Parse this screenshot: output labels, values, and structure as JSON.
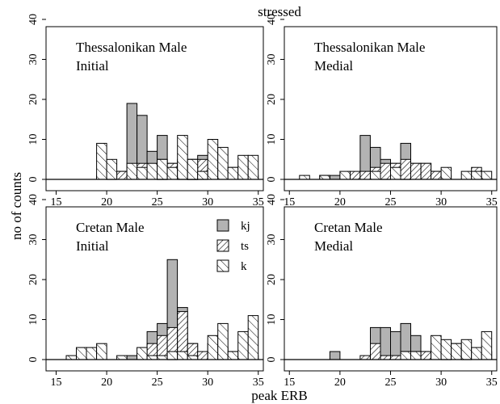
{
  "figure": {
    "title": "stressed",
    "xlabel": "peak ERB",
    "ylabel": "no of counts"
  },
  "legend": [
    {
      "label": "kj",
      "pattern": "solid"
    },
    {
      "label": "ts",
      "pattern": "hatch-forward"
    },
    {
      "label": "k",
      "pattern": "hatch-back"
    }
  ],
  "colors": {
    "kj_fill": "#b3b3b3",
    "outline": "#000000",
    "background": "#ffffff"
  },
  "chart_data": [
    {
      "type": "bar",
      "subtype": "histogram",
      "panel": "top-left",
      "label_lines": [
        "Thessalonikan Male",
        "Initial"
      ],
      "bin_width": 1,
      "xlim": [
        14,
        35.5
      ],
      "ylim": [
        0,
        42
      ],
      "xticks": [
        15,
        20,
        25,
        30,
        35
      ],
      "yticks": [
        0,
        10,
        20,
        30,
        40
      ],
      "series": [
        {
          "name": "kj",
          "bins": [
            {
              "x": 19.5,
              "count": 1
            },
            {
              "x": 20.5,
              "count": 2
            },
            {
              "x": 21.5,
              "count": 2
            },
            {
              "x": 22.5,
              "count": 19
            },
            {
              "x": 23.5,
              "count": 16
            },
            {
              "x": 24.5,
              "count": 7
            },
            {
              "x": 25.5,
              "count": 11
            },
            {
              "x": 26.5,
              "count": 4
            },
            {
              "x": 27.5,
              "count": 5
            },
            {
              "x": 28.5,
              "count": 5
            },
            {
              "x": 29.5,
              "count": 6
            },
            {
              "x": 30.5,
              "count": 3
            },
            {
              "x": 31.5,
              "count": 3
            },
            {
              "x": 32.5,
              "count": 3
            },
            {
              "x": 33.5,
              "count": 1
            }
          ]
        },
        {
          "name": "ts",
          "bins": [
            {
              "x": 20.5,
              "count": 2
            },
            {
              "x": 21.5,
              "count": 2
            },
            {
              "x": 22.5,
              "count": 2
            },
            {
              "x": 23.5,
              "count": 4
            },
            {
              "x": 24.5,
              "count": 3
            },
            {
              "x": 25.5,
              "count": 5
            },
            {
              "x": 26.5,
              "count": 4
            },
            {
              "x": 27.5,
              "count": 4
            },
            {
              "x": 28.5,
              "count": 5
            },
            {
              "x": 29.5,
              "count": 5
            },
            {
              "x": 30.5,
              "count": 2
            },
            {
              "x": 31.5,
              "count": 2
            },
            {
              "x": 34.5,
              "count": 1
            }
          ]
        },
        {
          "name": "k",
          "bins": [
            {
              "x": 19.5,
              "count": 9
            },
            {
              "x": 20.5,
              "count": 5
            },
            {
              "x": 22.5,
              "count": 4
            },
            {
              "x": 23.5,
              "count": 3
            },
            {
              "x": 24.5,
              "count": 4
            },
            {
              "x": 25.5,
              "count": 5
            },
            {
              "x": 26.5,
              "count": 3
            },
            {
              "x": 27.5,
              "count": 11
            },
            {
              "x": 28.5,
              "count": 5
            },
            {
              "x": 29.5,
              "count": 2
            },
            {
              "x": 30.5,
              "count": 10
            },
            {
              "x": 31.5,
              "count": 8
            },
            {
              "x": 32.5,
              "count": 3
            },
            {
              "x": 33.5,
              "count": 6
            },
            {
              "x": 34.5,
              "count": 6
            }
          ]
        }
      ]
    },
    {
      "type": "bar",
      "subtype": "histogram",
      "panel": "top-right",
      "label_lines": [
        "Thessalonikan Male",
        "Medial"
      ],
      "bin_width": 1,
      "xlim": [
        14.5,
        35.5
      ],
      "ylim": [
        0,
        42
      ],
      "xticks": [
        15,
        20,
        25,
        30,
        35
      ],
      "yticks": [
        0,
        10,
        20,
        30,
        40
      ],
      "series": [
        {
          "name": "kj",
          "bins": [
            {
              "x": 19.5,
              "count": 1
            },
            {
              "x": 22.5,
              "count": 11
            },
            {
              "x": 23.5,
              "count": 8
            },
            {
              "x": 24.5,
              "count": 5
            },
            {
              "x": 25.5,
              "count": 4
            },
            {
              "x": 26.5,
              "count": 9
            },
            {
              "x": 27.5,
              "count": 4
            },
            {
              "x": 28.5,
              "count": 4
            },
            {
              "x": 29.5,
              "count": 2
            }
          ]
        },
        {
          "name": "ts",
          "bins": [
            {
              "x": 18.5,
              "count": 1
            },
            {
              "x": 21.5,
              "count": 2
            },
            {
              "x": 22.5,
              "count": 2
            },
            {
              "x": 23.5,
              "count": 3
            },
            {
              "x": 24.5,
              "count": 4
            },
            {
              "x": 25.5,
              "count": 4
            },
            {
              "x": 26.5,
              "count": 5
            },
            {
              "x": 27.5,
              "count": 4
            },
            {
              "x": 28.5,
              "count": 4
            },
            {
              "x": 29.5,
              "count": 2
            },
            {
              "x": 30.5,
              "count": 1
            },
            {
              "x": 33.5,
              "count": 3
            }
          ]
        },
        {
          "name": "k",
          "bins": [
            {
              "x": 16.5,
              "count": 1
            },
            {
              "x": 18.5,
              "count": 1
            },
            {
              "x": 20.5,
              "count": 2
            },
            {
              "x": 23.5,
              "count": 2
            },
            {
              "x": 25.5,
              "count": 3
            },
            {
              "x": 30.5,
              "count": 3
            },
            {
              "x": 32.5,
              "count": 2
            },
            {
              "x": 33.5,
              "count": 2
            },
            {
              "x": 34.5,
              "count": 2
            }
          ]
        }
      ]
    },
    {
      "type": "bar",
      "subtype": "histogram",
      "panel": "bottom-left",
      "label_lines": [
        "Cretan Male",
        "Initial"
      ],
      "bin_width": 1,
      "xlim": [
        14,
        35.5
      ],
      "ylim": [
        0,
        42
      ],
      "xticks": [
        15,
        20,
        25,
        30,
        35
      ],
      "yticks": [
        0,
        10,
        20,
        30,
        40
      ],
      "series": [
        {
          "name": "kj",
          "bins": [
            {
              "x": 22.5,
              "count": 1
            },
            {
              "x": 23.5,
              "count": 1
            },
            {
              "x": 24.5,
              "count": 7
            },
            {
              "x": 25.5,
              "count": 9
            },
            {
              "x": 26.5,
              "count": 25
            },
            {
              "x": 27.5,
              "count": 13
            },
            {
              "x": 28.5,
              "count": 4
            },
            {
              "x": 29.5,
              "count": 1
            }
          ]
        },
        {
          "name": "ts",
          "bins": [
            {
              "x": 23.5,
              "count": 1
            },
            {
              "x": 24.5,
              "count": 4
            },
            {
              "x": 25.5,
              "count": 6
            },
            {
              "x": 26.5,
              "count": 8
            },
            {
              "x": 27.5,
              "count": 12
            },
            {
              "x": 28.5,
              "count": 4
            },
            {
              "x": 29.5,
              "count": 2
            },
            {
              "x": 30.5,
              "count": 4
            },
            {
              "x": 31.5,
              "count": 3
            },
            {
              "x": 32.5,
              "count": 2
            },
            {
              "x": 33.5,
              "count": 2
            },
            {
              "x": 34.5,
              "count": 1
            }
          ]
        },
        {
          "name": "k",
          "bins": [
            {
              "x": 16.5,
              "count": 1
            },
            {
              "x": 17.5,
              "count": 3
            },
            {
              "x": 18.5,
              "count": 3
            },
            {
              "x": 19.5,
              "count": 4
            },
            {
              "x": 21.5,
              "count": 1
            },
            {
              "x": 23.5,
              "count": 3
            },
            {
              "x": 24.5,
              "count": 1
            },
            {
              "x": 25.5,
              "count": 1
            },
            {
              "x": 26.5,
              "count": 2
            },
            {
              "x": 27.5,
              "count": 2
            },
            {
              "x": 28.5,
              "count": 1
            },
            {
              "x": 30.5,
              "count": 6
            },
            {
              "x": 31.5,
              "count": 9
            },
            {
              "x": 32.5,
              "count": 2
            },
            {
              "x": 33.5,
              "count": 7
            },
            {
              "x": 34.5,
              "count": 11
            }
          ]
        }
      ]
    },
    {
      "type": "bar",
      "subtype": "histogram",
      "panel": "bottom-right",
      "label_lines": [
        "Cretan Male",
        "Medial"
      ],
      "bin_width": 1,
      "xlim": [
        14.5,
        35.5
      ],
      "ylim": [
        0,
        42
      ],
      "xticks": [
        15,
        20,
        25,
        30,
        35
      ],
      "yticks": [
        0,
        10,
        20,
        30,
        40
      ],
      "series": [
        {
          "name": "kj",
          "bins": [
            {
              "x": 19.5,
              "count": 2
            },
            {
              "x": 23.5,
              "count": 8
            },
            {
              "x": 24.5,
              "count": 8
            },
            {
              "x": 25.5,
              "count": 7
            },
            {
              "x": 26.5,
              "count": 9
            },
            {
              "x": 27.5,
              "count": 6
            },
            {
              "x": 28.5,
              "count": 2
            },
            {
              "x": 30.5,
              "count": 3
            },
            {
              "x": 31.5,
              "count": 1
            }
          ]
        },
        {
          "name": "ts",
          "bins": [
            {
              "x": 22.5,
              "count": 1
            },
            {
              "x": 23.5,
              "count": 4
            },
            {
              "x": 24.5,
              "count": 1
            },
            {
              "x": 25.5,
              "count": 1
            },
            {
              "x": 26.5,
              "count": 2
            },
            {
              "x": 27.5,
              "count": 2
            },
            {
              "x": 28.5,
              "count": 2
            },
            {
              "x": 29.5,
              "count": 3
            },
            {
              "x": 30.5,
              "count": 2
            },
            {
              "x": 31.5,
              "count": 4
            },
            {
              "x": 32.5,
              "count": 1
            },
            {
              "x": 33.5,
              "count": 1
            },
            {
              "x": 34.5,
              "count": 2
            }
          ]
        },
        {
          "name": "k",
          "bins": [
            {
              "x": 26.5,
              "count": 2
            },
            {
              "x": 27.5,
              "count": 2
            },
            {
              "x": 29.5,
              "count": 6
            },
            {
              "x": 30.5,
              "count": 5
            },
            {
              "x": 31.5,
              "count": 4
            },
            {
              "x": 32.5,
              "count": 5
            },
            {
              "x": 33.5,
              "count": 3
            },
            {
              "x": 34.5,
              "count": 7
            }
          ]
        }
      ]
    }
  ]
}
